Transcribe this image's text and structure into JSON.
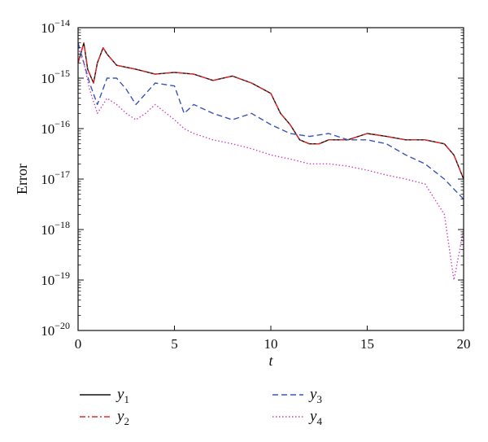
{
  "chart_data": {
    "type": "line",
    "xlabel": "t",
    "ylabel": "Error",
    "xlim": [
      0,
      20
    ],
    "ylim_exponent": [
      -20,
      -14
    ],
    "yscale": "log",
    "grid": false,
    "legend_placement": "bottom",
    "x_ticks": [
      "0",
      "5",
      "10",
      "15",
      "20"
    ],
    "y_ticks": [
      {
        "base": "10",
        "exp": "−14"
      },
      {
        "base": "10",
        "exp": "−15"
      },
      {
        "base": "10",
        "exp": "−16"
      },
      {
        "base": "10",
        "exp": "−17"
      },
      {
        "base": "10",
        "exp": "−18"
      },
      {
        "base": "10",
        "exp": "−19"
      },
      {
        "base": "10",
        "exp": "−20"
      }
    ],
    "series": [
      {
        "name": "y1",
        "label_main": "y",
        "label_sub": "1",
        "color": "#111111",
        "dash": "solid",
        "x": [
          0,
          0.3,
          0.5,
          0.8,
          1.0,
          1.3,
          1.5,
          2,
          3,
          4,
          5,
          6,
          7,
          8,
          9,
          10,
          10.5,
          11,
          11.5,
          12,
          12.5,
          13,
          14,
          15,
          16,
          17,
          18,
          19,
          19.5,
          20
        ],
        "y": [
          2e-15,
          5e-15,
          1.5e-15,
          8e-16,
          2e-15,
          4e-15,
          3e-15,
          1.8e-15,
          1.5e-15,
          1.2e-15,
          1.3e-15,
          1.2e-15,
          9e-16,
          1.1e-15,
          8e-16,
          5e-16,
          2e-16,
          1.2e-16,
          6e-17,
          5e-17,
          5e-17,
          6e-17,
          6e-17,
          8e-17,
          7e-17,
          6e-17,
          6e-17,
          5e-17,
          3e-17,
          1e-17
        ]
      },
      {
        "name": "y2",
        "label_main": "y",
        "label_sub": "2",
        "color": "#e8282a",
        "dash": "dashdot",
        "x": [
          0,
          0.3,
          0.5,
          0.8,
          1.0,
          1.3,
          1.5,
          2,
          3,
          4,
          5,
          6,
          7,
          8,
          9,
          10,
          10.5,
          11,
          11.5,
          12,
          12.5,
          13,
          14,
          15,
          16,
          17,
          18,
          19,
          19.5,
          20
        ],
        "y": [
          2e-15,
          5e-15,
          1.5e-15,
          8e-16,
          2e-15,
          4e-15,
          3e-15,
          1.8e-15,
          1.5e-15,
          1.2e-15,
          1.3e-15,
          1.2e-15,
          9e-16,
          1.1e-15,
          8e-16,
          5e-16,
          2e-16,
          1.2e-16,
          6e-17,
          5e-17,
          5e-17,
          6e-17,
          6e-17,
          8e-17,
          7e-17,
          6e-17,
          6e-17,
          5e-17,
          3e-17,
          1e-17
        ]
      },
      {
        "name": "y3",
        "label_main": "y",
        "label_sub": "3",
        "color": "#3a55b8",
        "dash": "dashed",
        "x": [
          0,
          0.3,
          0.6,
          1.0,
          1.5,
          2,
          2.5,
          3,
          4,
          5,
          5.5,
          6,
          7,
          8,
          9,
          10,
          11,
          12,
          13,
          14,
          15,
          16,
          17,
          18,
          19,
          20
        ],
        "y": [
          5e-15,
          2e-15,
          8e-16,
          3e-16,
          1e-15,
          1e-15,
          6e-16,
          3e-16,
          8e-16,
          7e-16,
          2e-16,
          3e-16,
          2e-16,
          1.5e-16,
          2e-16,
          1.2e-16,
          8e-17,
          7e-17,
          8e-17,
          6e-17,
          6e-17,
          5e-17,
          3e-17,
          2e-17,
          1e-17,
          4e-18
        ]
      },
      {
        "name": "y4",
        "label_main": "y",
        "label_sub": "4",
        "color": "#cc44bb",
        "dash": "dotted",
        "x": [
          0,
          0.3,
          0.6,
          1.0,
          1.5,
          2,
          2.5,
          3,
          3.5,
          4,
          5,
          5.5,
          6,
          7,
          8,
          9,
          10,
          11,
          12,
          13,
          14,
          15,
          16,
          17,
          18,
          19,
          19.5,
          20
        ],
        "y": [
          4e-15,
          2e-15,
          6e-16,
          2e-16,
          4e-16,
          3e-16,
          2e-16,
          1.5e-16,
          2e-16,
          3e-16,
          1.5e-16,
          1e-16,
          8e-17,
          6e-17,
          5e-17,
          4e-17,
          3e-17,
          2.5e-17,
          2e-17,
          2e-17,
          1.8e-17,
          1.5e-17,
          1.2e-17,
          1e-17,
          8e-18,
          2e-18,
          1e-19,
          1e-18
        ]
      }
    ]
  }
}
